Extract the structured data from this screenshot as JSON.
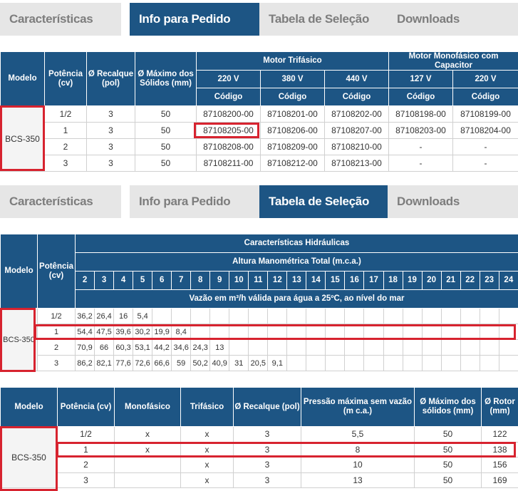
{
  "tabs": [
    "Características",
    "Info para Pedido",
    "Tabela de Seleção",
    "Downloads"
  ],
  "colors": {
    "header_blue": "#1d5584",
    "tab_inactive_bg": "#e6e6e6",
    "tab_inactive_text": "#7d7d7d",
    "highlight_red": "#d7232f"
  },
  "order_table": {
    "col_model": "Modelo",
    "col_power": "Potência (cv)",
    "col_discharge": "Ø Recalque (pol)",
    "col_solids": "Ø Máximo dos Sólidos (mm)",
    "group_tri": "Motor Trifásico",
    "group_mono": "Motor Monofásico com Capacitor",
    "v220": "220 V",
    "v380": "380 V",
    "v440": "440 V",
    "v127": "127 V",
    "v220b": "220 V",
    "code_label": "Código",
    "model": "BCS-350",
    "rows": [
      [
        "1/2",
        "3",
        "50",
        "87108200-00",
        "87108201-00",
        "87108202-00",
        "87108198-00",
        "87108199-00"
      ],
      [
        "1",
        "3",
        "50",
        "87108205-00",
        "87108206-00",
        "87108207-00",
        "87108203-00",
        "87108204-00"
      ],
      [
        "2",
        "3",
        "50",
        "87108208-00",
        "87108209-00",
        "87108210-00",
        "-",
        "-"
      ],
      [
        "3",
        "3",
        "50",
        "87108211-00",
        "87108212-00",
        "87108213-00",
        "-",
        "-"
      ]
    ]
  },
  "selection_table": {
    "col_model": "Modelo",
    "col_power": "Potência (cv)",
    "hydraulic_title": "Características Hidráulicas",
    "head_title": "Altura Manométrica Total (m.c.a.)",
    "heads": [
      "2",
      "3",
      "4",
      "5",
      "6",
      "7",
      "8",
      "9",
      "10",
      "11",
      "12",
      "13",
      "14",
      "15",
      "16",
      "17",
      "18",
      "19",
      "20",
      "21",
      "22",
      "23",
      "24"
    ],
    "flow_note": "Vazão em m³/h válida para água a 25ºC, ao nível do mar",
    "model": "BCS-350",
    "rows": [
      {
        "power": "1/2",
        "values": [
          "36,2",
          "26,4",
          "16",
          "5,4",
          "",
          "",
          "",
          "",
          "",
          "",
          "",
          "",
          "",
          "",
          "",
          "",
          "",
          "",
          "",
          "",
          "",
          "",
          ""
        ]
      },
      {
        "power": "1",
        "values": [
          "54,4",
          "47,5",
          "39,6",
          "30,2",
          "19,9",
          "8,4",
          "",
          "",
          "",
          "",
          "",
          "",
          "",
          "",
          "",
          "",
          "",
          "",
          "",
          "",
          "",
          "",
          ""
        ]
      },
      {
        "power": "2",
        "values": [
          "70,9",
          "66",
          "60,3",
          "53,1",
          "44,2",
          "34,6",
          "24,3",
          "13",
          "",
          "",
          "",
          "",
          "",
          "",
          "",
          "",
          "",
          "",
          "",
          "",
          "",
          "",
          ""
        ]
      },
      {
        "power": "3",
        "values": [
          "86,2",
          "82,1",
          "77,6",
          "72,6",
          "66,6",
          "59",
          "50,2",
          "40,9",
          "31",
          "20,5",
          "9,1",
          "",
          "",
          "",
          "",
          "",
          "",
          "",
          "",
          "",
          "",
          "",
          ""
        ]
      }
    ]
  },
  "spec_table": {
    "headers": [
      "Modelo",
      "Potência (cv)",
      "Monofásico",
      "Trifásico",
      "Ø Recalque (pol)",
      "Pressão máxima sem vazão (m c.a.)",
      "Ø Máximo dos sólidos (mm)",
      "Ø Rotor (mm)"
    ],
    "model": "BCS-350",
    "rows": [
      [
        "1/2",
        "x",
        "x",
        "3",
        "5,5",
        "50",
        "122"
      ],
      [
        "1",
        "x",
        "x",
        "3",
        "8",
        "50",
        "138"
      ],
      [
        "2",
        "",
        "x",
        "3",
        "10",
        "50",
        "156"
      ],
      [
        "3",
        "",
        "x",
        "3",
        "13",
        "50",
        "169"
      ]
    ]
  }
}
